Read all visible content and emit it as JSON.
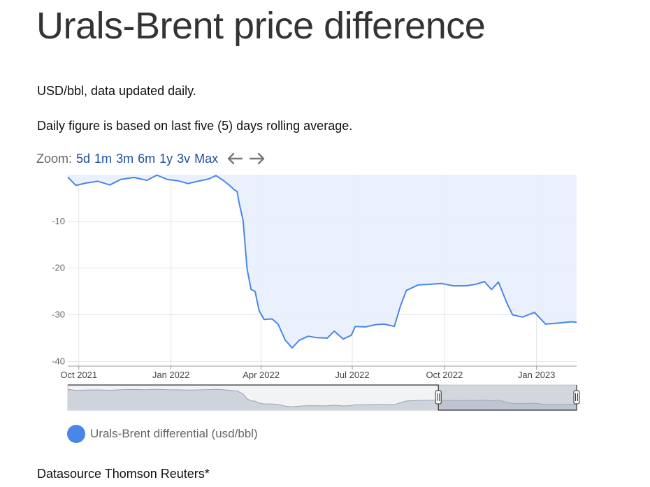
{
  "page": {
    "title": "Urals-Brent price difference",
    "subtitle1": "USD/bbl, data updated daily.",
    "subtitle2": "Daily figure is based on last five (5) days rolling average.",
    "footer": "Datasource Thomson Reuters*"
  },
  "zoom": {
    "label": "Zoom:",
    "options": [
      "5d",
      "1m",
      "3m",
      "6m",
      "1y",
      "3v",
      "Max"
    ],
    "back_icon": "arrow-left-icon",
    "forward_icon": "arrow-right-icon"
  },
  "legend": {
    "label": "Urals-Brent differential (usd/bbl)",
    "marker_icon": "circle-marker-icon"
  },
  "colors": {
    "line": "#4a86e8",
    "area": "#e8effc",
    "grid": "#e4e4e4",
    "navigator_fill": "#cfd4dc",
    "navigator_selected": "#aab3c1"
  },
  "chart_data": {
    "type": "area",
    "title": "",
    "xlabel": "",
    "ylabel": "",
    "x_ticks": [
      "Oct 2021",
      "Jan 2022",
      "Apr 2022",
      "Jul 2022",
      "Oct 2022",
      "Jan 2023"
    ],
    "y_ticks": [
      "-10",
      "-20",
      "-30",
      "-40"
    ],
    "ylim": [
      -41,
      0
    ],
    "xlim": [
      "2021-09-20",
      "2023-02-10"
    ],
    "grid": true,
    "legend_position": "bottom-left",
    "navigator_range": [
      "2022-09-25",
      "2023-02-10"
    ],
    "series": [
      {
        "name": "Urals-Brent differential (usd/bbl)",
        "points": [
          [
            "2021-09-20",
            -0.5
          ],
          [
            "2021-09-28",
            -2.3
          ],
          [
            "2021-10-08",
            -1.8
          ],
          [
            "2021-10-20",
            -1.4
          ],
          [
            "2021-11-01",
            -2.2
          ],
          [
            "2021-11-12",
            -1.0
          ],
          [
            "2021-11-25",
            -0.6
          ],
          [
            "2021-12-08",
            -1.2
          ],
          [
            "2021-12-18",
            -0.1
          ],
          [
            "2021-12-28",
            -1.0
          ],
          [
            "2022-01-08",
            -1.3
          ],
          [
            "2022-01-18",
            -1.9
          ],
          [
            "2022-01-28",
            -1.4
          ],
          [
            "2022-02-08",
            -0.9
          ],
          [
            "2022-02-15",
            -0.2
          ],
          [
            "2022-02-22",
            -1.2
          ],
          [
            "2022-03-01",
            -2.4
          ],
          [
            "2022-03-05",
            -3.2
          ],
          [
            "2022-03-08",
            -3.6
          ],
          [
            "2022-03-10",
            -6.0
          ],
          [
            "2022-03-14",
            -9.8
          ],
          [
            "2022-03-18",
            -20.2
          ],
          [
            "2022-03-22",
            -24.6
          ],
          [
            "2022-03-26",
            -25.0
          ],
          [
            "2022-03-30",
            -29.1
          ],
          [
            "2022-04-04",
            -31.0
          ],
          [
            "2022-04-12",
            -30.9
          ],
          [
            "2022-04-18",
            -32.0
          ],
          [
            "2022-04-25",
            -35.4
          ],
          [
            "2022-05-02",
            -37.1
          ],
          [
            "2022-05-09",
            -35.5
          ],
          [
            "2022-05-18",
            -34.6
          ],
          [
            "2022-05-26",
            -34.9
          ],
          [
            "2022-06-06",
            -35.0
          ],
          [
            "2022-06-13",
            -33.5
          ],
          [
            "2022-06-22",
            -35.2
          ],
          [
            "2022-06-30",
            -34.4
          ],
          [
            "2022-07-04",
            -32.5
          ],
          [
            "2022-07-14",
            -32.6
          ],
          [
            "2022-07-25",
            -32.1
          ],
          [
            "2022-08-02",
            -32.0
          ],
          [
            "2022-08-12",
            -32.5
          ],
          [
            "2022-08-18",
            -28.2
          ],
          [
            "2022-08-24",
            -24.8
          ],
          [
            "2022-09-05",
            -23.6
          ],
          [
            "2022-09-15",
            -23.5
          ],
          [
            "2022-09-28",
            -23.3
          ],
          [
            "2022-10-10",
            -23.8
          ],
          [
            "2022-10-22",
            -23.8
          ],
          [
            "2022-11-01",
            -23.5
          ],
          [
            "2022-11-10",
            -22.9
          ],
          [
            "2022-11-17",
            -24.6
          ],
          [
            "2022-11-24",
            -23.0
          ],
          [
            "2022-12-02",
            -27.3
          ],
          [
            "2022-12-08",
            -30.0
          ],
          [
            "2022-12-18",
            -30.5
          ],
          [
            "2022-12-30",
            -29.5
          ],
          [
            "2023-01-10",
            -32.0
          ],
          [
            "2023-01-22",
            -31.8
          ],
          [
            "2023-02-05",
            -31.5
          ],
          [
            "2023-02-10",
            -31.6
          ]
        ]
      }
    ]
  }
}
